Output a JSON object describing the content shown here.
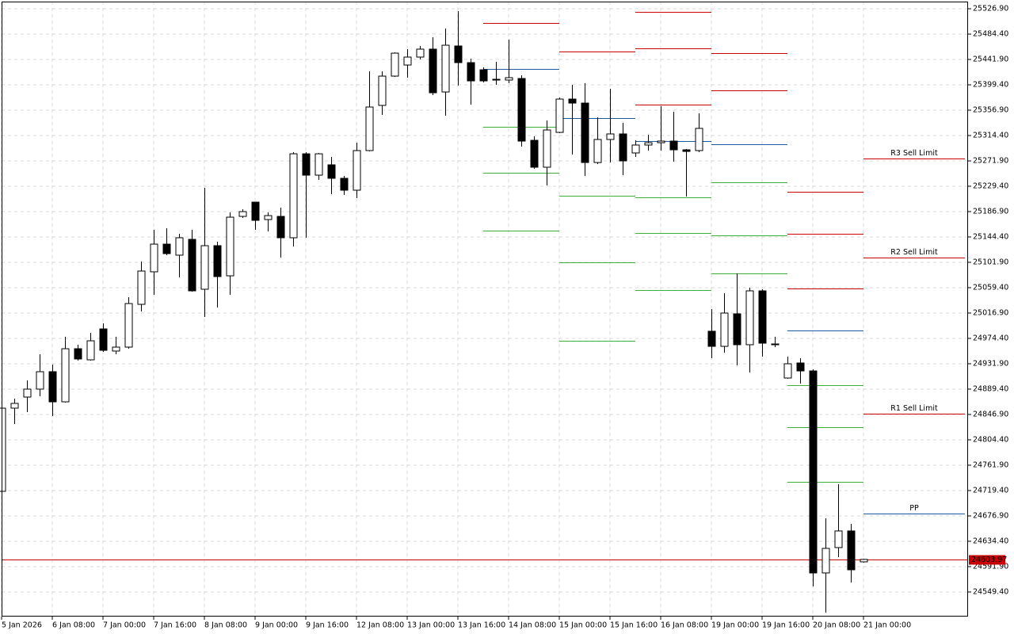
{
  "chart_data": {
    "type": "candlestick",
    "categories": [
      "5 Jan 2026",
      null,
      null,
      null,
      "6 Jan 08:00",
      null,
      null,
      null,
      "7 Jan 00:00",
      null,
      null,
      null,
      "7 Jan 16:00",
      null,
      null,
      null,
      "8 Jan 08:00",
      null,
      null,
      null,
      "9 Jan 00:00",
      null,
      null,
      null,
      "9 Jan 16:00",
      null,
      null,
      null,
      "12 Jan 08:00",
      null,
      null,
      null,
      "13 Jan 00:00",
      null,
      null,
      null,
      "13 Jan 16:00",
      null,
      null,
      null,
      "14 Jan 08:00",
      null,
      null,
      null,
      "15 Jan 00:00",
      null,
      null,
      null,
      "15 Jan 16:00",
      null,
      null,
      null,
      "16 Jan 08:00",
      null,
      null,
      null,
      "19 Jan 00:00",
      null,
      null,
      null,
      "19 Jan 16:00",
      null,
      null,
      null,
      "20 Jan 08:00",
      null,
      null,
      null,
      "21 Jan 00:00"
    ],
    "open": [
      24718.1,
      24857.5,
      24876.1,
      24889.4,
      24918.6,
      24868.1,
      24957.1,
      24938.5,
      24990.3,
      24953.2,
      24959.8,
      25031.5,
      25086.0,
      25132.4,
      25113.9,
      25140.4,
      25056.8,
      25129.8,
      25079.3,
      25178.9,
      25202.8,
      25173.6,
      25178.9,
      25143.1,
      25283.8,
      25248.0,
      25265.3,
      25242.7,
      25222.8,
      25289.2,
      25364.9,
      25414.0,
      25432.6,
      25445.9,
      25459.2,
      25387.4,
      25464.5,
      25436.6,
      25424.6,
      25407.4,
      25407.4,
      25410.0,
      25306.4,
      25261.3,
      25319.7,
      25375.5,
      25368.8,
      25269.2,
      25307.8,
      25317.1,
      25285.2,
      25298.5,
      25302.4,
      25305.1,
      25290.5,
      25289.2,
      24986.4,
      24961.1,
      25015.6,
      24963.8,
      25054.1,
      24965.1,
      24908.0,
      24933.2,
      24919.9,
      24581.3,
      24623.8,
      24651.7,
      24599.9
    ],
    "high": [
      24864.2,
      24873.5,
      24904.0,
      24947.8,
      24930.6,
      24977.1,
      24963.8,
      24983.7,
      24999.6,
      24977.1,
      25043.5,
      25103.2,
      25156.4,
      25159.0,
      25149.7,
      25156.4,
      25226.7,
      25136.4,
      25185.6,
      25190.9,
      25202.8,
      25185.6,
      25193.5,
      25286.5,
      25286.5,
      25285.2,
      25278.5,
      25246.7,
      25302.4,
      25422.0,
      25422.0,
      25453.9,
      25459.2,
      25464.5,
      25479.1,
      25493.7,
      25522.9,
      25443.2,
      25428.6,
      25437.9,
      25475.1,
      25415.3,
      25313.1,
      25339.6,
      25378.1,
      25399.4,
      25402.1,
      25344.9,
      25392.8,
      25335.7,
      25306.4,
      25315.7,
      25363.5,
      25354.2,
      25291.8,
      25351.6,
      25023.5,
      25050.1,
      25083.3,
      25059.4,
      25056.8,
      24977.1,
      24943.9,
      24941.2,
      24922.6,
      24672.9,
      24730.0,
      24663.6,
      24605.2
    ],
    "low": [
      24718.1,
      24831.0,
      24850.9,
      24877.5,
      24844.2,
      24866.8,
      24937.2,
      24937.2,
      24951.8,
      24947.8,
      24957.1,
      25019.6,
      25047.5,
      25113.9,
      25076.7,
      25052.8,
      25010.3,
      25026.2,
      25047.5,
      25176.3,
      25156.4,
      25153.7,
      25109.9,
      25128.5,
      25143.1,
      25240.0,
      25216.1,
      25214.8,
      25209.5,
      25287.8,
      25348.9,
      25412.7,
      25411.4,
      25441.9,
      25382.1,
      25347.6,
      25398.1,
      25366.2,
      25403.4,
      25399.4,
      25402.1,
      25295.8,
      25258.6,
      25230.7,
      25318.4,
      25282.5,
      25246.7,
      25266.6,
      25269.2,
      25248.0,
      25278.5,
      25289.2,
      25289.2,
      25270.6,
      25212.1,
      25286.5,
      24941.2,
      24950.5,
      24929.2,
      24917.3,
      24943.9,
      24959.8,
      24906.7,
      24898.7,
      24558.7,
      24514.9,
      24607.8,
      24565.3,
      24598.5
    ],
    "close": [
      24857.5,
      24865.5,
      24889.4,
      24918.6,
      24868.1,
      24957.1,
      24939.9,
      24970.4,
      24954.5,
      24959.8,
      25032.8,
      25087.3,
      25132.4,
      25116.5,
      25143.1,
      25054.1,
      25129.8,
      25078.0,
      25177.6,
      25186.9,
      25172.3,
      25180.2,
      25143.1,
      25283.8,
      25248.0,
      25283.8,
      25242.7,
      25222.8,
      25289.2,
      25362.2,
      25414.0,
      25452.5,
      25445.9,
      25459.2,
      25386.1,
      25465.8,
      25436.6,
      25406.0,
      25406.0,
      25408.7,
      25411.4,
      25305.1,
      25261.3,
      25323.7,
      25375.5,
      25368.8,
      25269.2,
      25307.8,
      25317.1,
      25271.9,
      25298.5,
      25302.4,
      25305.1,
      25290.5,
      25287.8,
      25326.4,
      24961.1,
      25016.9,
      24963.8,
      25054.1,
      24966.4,
      24965.1,
      24931.9,
      24919.9,
      24581.3,
      24622.5,
      24651.7,
      24586.6,
      24603.97
    ],
    "bull_color": "#ffffff",
    "bear_color": "#000000",
    "ylim": [
      24508.2,
      25538.9
    ],
    "yticks": [
      {
        "value": 25526.9,
        "label": "25526.90"
      },
      {
        "value": 25484.4,
        "label": "25484.40"
      },
      {
        "value": 25441.9,
        "label": "25441.90"
      },
      {
        "value": 25399.4,
        "label": "25399.40"
      },
      {
        "value": 25356.9,
        "label": "25356.90"
      },
      {
        "value": 25314.4,
        "label": "25314.40"
      },
      {
        "value": 25271.9,
        "label": "25271.90"
      },
      {
        "value": 25229.4,
        "label": "25229.40"
      },
      {
        "value": 25186.9,
        "label": "25186.90"
      },
      {
        "value": 25144.4,
        "label": "25144.40"
      },
      {
        "value": 25101.9,
        "label": "25101.90"
      },
      {
        "value": 25059.4,
        "label": "25059.40"
      },
      {
        "value": 25016.9,
        "label": "25016.90"
      },
      {
        "value": 24974.4,
        "label": "24974.40"
      },
      {
        "value": 24931.9,
        "label": "24931.90"
      },
      {
        "value": 24889.4,
        "label": "24889.40"
      },
      {
        "value": 24846.9,
        "label": "24846.90"
      },
      {
        "value": 24804.4,
        "label": "24804.40"
      },
      {
        "value": 24761.9,
        "label": "24761.90"
      },
      {
        "value": 24719.4,
        "label": "24719.40"
      },
      {
        "value": 24676.9,
        "label": "24676.90"
      },
      {
        "value": 24634.4,
        "label": "24634.40"
      },
      {
        "value": 24591.9,
        "label": "24591.90"
      },
      {
        "value": 24549.4,
        "label": "24549.40"
      }
    ],
    "grid": true,
    "current_price": 24603.97,
    "current_price_color": "#c80000",
    "resistance_color": "#cc0000",
    "pivot_color": "#1e5aa0",
    "support_color": "#3cae3c",
    "pivot_levels": [
      {
        "resistance": [
          25503.0
        ],
        "pivot": 25426.0,
        "support": [
          25329.0,
          25252.0,
          25155.0
        ]
      },
      {
        "resistance": [
          25455.2
        ],
        "pivot": 25343.6,
        "support": [
          25213.5,
          25101.9,
          24970.4
        ]
      },
      {
        "resistance": [
          25521.6,
          25460.5,
          25366.2
        ],
        "pivot": 25305.1,
        "support": [
          25210.8,
          25151.0,
          25055.4
        ]
      },
      {
        "resistance": [
          25452.5,
          25390.1
        ],
        "pivot": 25299.8,
        "support": [
          25236.0,
          25147.1,
          25083.3
        ]
      },
      {
        "resistance": [
          25220.1,
          25149.7,
          25058.1
        ],
        "pivot": 24987.7,
        "support": [
          24896.0,
          24825.7,
          24734.0
        ]
      },
      {
        "resistance": [
          25275.9,
          25109.9,
          24848.2
        ],
        "resistance_labels": [
          "R3 Sell Limit",
          "R2 Sell Limit",
          "R1 Sell Limit"
        ],
        "pivot": 24680.9,
        "pivot_label": "PP",
        "support": []
      }
    ]
  }
}
